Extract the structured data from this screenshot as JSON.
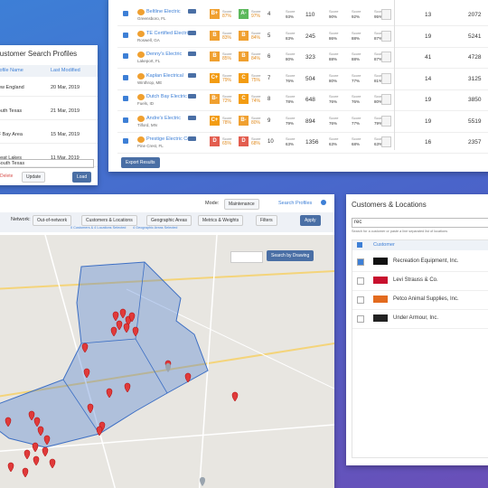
{
  "profiles": {
    "title": "Customer Search Profiles",
    "columns": [
      "Profile Name",
      "Last Modified"
    ],
    "rows": [
      [
        "New England",
        "20 Mar, 2019"
      ],
      [
        "South Texas",
        "21 Mar, 2019"
      ],
      [
        "SF Bay Area",
        "15 Mar, 2019"
      ],
      [
        "Great Lakes",
        "11 Mar, 2019"
      ]
    ],
    "input": "South Texas",
    "buttons": [
      "Delete",
      "Update",
      "Load"
    ]
  },
  "results": {
    "score_label": "Score",
    "rows": [
      [
        "Beltline Electric",
        "Greensboro, FL",
        "B+",
        "87%",
        "A-",
        "97%",
        "4",
        "93%",
        "110",
        "90%",
        "92%",
        "95%",
        "13",
        "2072"
      ],
      [
        "TE Certified Electric",
        "Roswell, GA",
        "B",
        "83%",
        "B",
        "84%",
        "5",
        "83%",
        "245",
        "86%",
        "88%",
        "87%",
        "19",
        "5241"
      ],
      [
        "Denny's Electric",
        "Lakeport, FL",
        "B",
        "85%",
        "B",
        "84%",
        "6",
        "80%",
        "323",
        "88%",
        "88%",
        "87%",
        "41",
        "4728"
      ],
      [
        "Kaplan Electrical",
        "Winthrop, ME",
        "C+",
        "79%",
        "C",
        "75%",
        "7",
        "76%",
        "504",
        "80%",
        "77%",
        "81%",
        "14",
        "3125"
      ],
      [
        "Dutch Bay Electric",
        "Fuels, ID",
        "B-",
        "72%",
        "C",
        "74%",
        "8",
        "78%",
        "648",
        "76%",
        "76%",
        "80%",
        "19",
        "3850"
      ],
      [
        "Andre's Electric",
        "Tilford, MN",
        "C+",
        "78%",
        "B-",
        "80%",
        "9",
        "79%",
        "894",
        "76%",
        "77%",
        "79%",
        "19",
        "5519"
      ],
      [
        "Prestige Electric Co",
        "Pine Crest, FL",
        "D",
        "65%",
        "D",
        "68%",
        "10",
        "63%",
        "1356",
        "63%",
        "68%",
        "63%",
        "16",
        "2357"
      ]
    ],
    "export": "Export Results"
  },
  "map": {
    "mode_label": "Mode:",
    "mode": "Maintenance",
    "profiles_link": "Search Profiles",
    "network_label": "Network:",
    "network": "Out-of-network",
    "buttons": [
      "Customers & Locations",
      "Geographic Areas",
      "Metrics & Weights",
      "Filters",
      "Apply"
    ],
    "notes": [
      "0 Customers & 4 Locations Selected",
      "4 Geographic Areas Selected"
    ],
    "draw": "Search by Drawing"
  },
  "customers": {
    "title": "Customers & Locations",
    "input": "rec",
    "hint": "Search for a customer or paste a line separated list of locations",
    "header": "Customer",
    "rows": [
      "Recreation Equipment, Inc.",
      "Levi Strauss & Co.",
      "Petco Animal Supplies, Inc.",
      "Under Armour, Inc."
    ]
  }
}
